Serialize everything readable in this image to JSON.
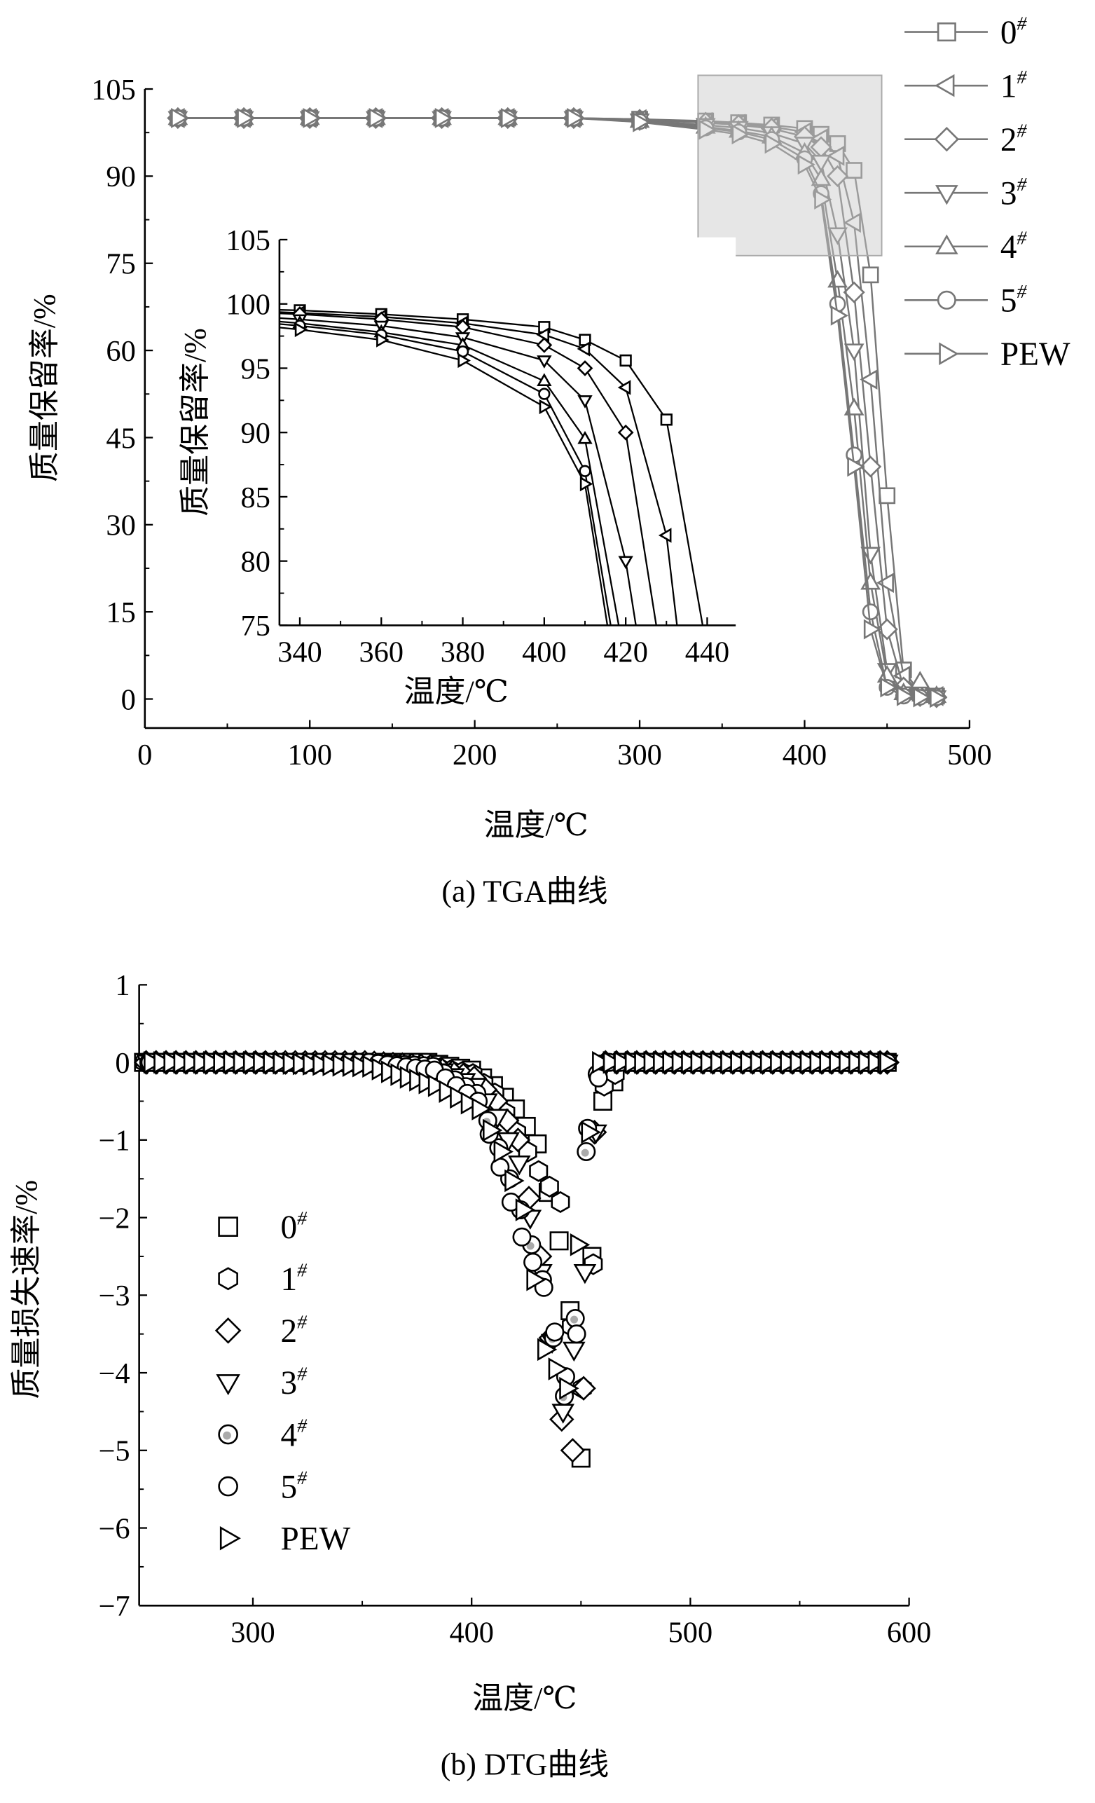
{
  "chart_data": [
    {
      "id": "tga",
      "type": "line",
      "caption": "(a) TGA曲线",
      "xlabel": "温度/℃",
      "ylabel": "质量保留率/%",
      "xlim": [
        0,
        500
      ],
      "ylim": [
        -5,
        105
      ],
      "xticks": [
        0,
        100,
        200,
        300,
        400,
        500
      ],
      "yticks": [
        0,
        15,
        30,
        45,
        60,
        75,
        90,
        105
      ],
      "grid": false,
      "legend_position": "top-right, outside",
      "x": [
        20,
        60,
        100,
        140,
        180,
        220,
        260,
        300,
        340,
        360,
        380,
        400,
        410,
        420,
        430,
        440,
        450,
        460,
        470,
        480
      ],
      "series": [
        {
          "name": "0#",
          "label_base": "0",
          "label_sup": "#",
          "marker": "square",
          "values": [
            100,
            100,
            100,
            100,
            100,
            100,
            100,
            99.8,
            99.5,
            99.2,
            98.8,
            98.2,
            97.2,
            95.6,
            91,
            73,
            35,
            5,
            1,
            0.5
          ]
        },
        {
          "name": "1#",
          "label_base": "1",
          "label_sup": "#",
          "marker": "triangle-left",
          "values": [
            100,
            100,
            100,
            100,
            100,
            100,
            100,
            99.8,
            99.3,
            99,
            98.5,
            97.6,
            96.5,
            93.5,
            82,
            55,
            20,
            4,
            1,
            0.5
          ]
        },
        {
          "name": "2#",
          "label_base": "2",
          "label_sup": "#",
          "marker": "diamond",
          "values": [
            100,
            100,
            100,
            100,
            100,
            100,
            100,
            99.7,
            99.2,
            98.8,
            98.2,
            96.8,
            95,
            90,
            70,
            40,
            12,
            2,
            0.5,
            0.3
          ]
        },
        {
          "name": "3#",
          "label_base": "3",
          "label_sup": "#",
          "marker": "triangle-down",
          "values": [
            100,
            100,
            100,
            100,
            100,
            100,
            100,
            99.6,
            98.8,
            98.3,
            97.4,
            95.6,
            92.5,
            80,
            60,
            25,
            5,
            1,
            0.5,
            0.3
          ]
        },
        {
          "name": "4#",
          "label_base": "4",
          "label_sup": "#",
          "marker": "triangle-up",
          "values": [
            100,
            100,
            100,
            100,
            100,
            100,
            100,
            99.5,
            98.5,
            97.8,
            96.8,
            94,
            89.5,
            72,
            50,
            20,
            4,
            1,
            3,
            0.5
          ]
        },
        {
          "name": "5#",
          "label_base": "5",
          "label_sup": "#",
          "marker": "circle",
          "values": [
            100,
            100,
            100,
            100,
            100,
            100,
            100,
            99.4,
            98.3,
            97.6,
            96.3,
            93,
            87,
            68,
            42,
            15,
            2,
            0.5,
            0.3,
            0.2
          ]
        },
        {
          "name": "PEW",
          "label_base": "PEW",
          "label_sup": "",
          "marker": "triangle-right",
          "values": [
            100,
            100,
            100,
            100,
            100,
            100,
            100,
            99.3,
            98,
            97.2,
            95.6,
            92,
            86,
            66,
            40,
            12,
            2,
            0.5,
            0.3,
            0.2
          ]
        }
      ],
      "inset": {
        "xlabel": "温度/℃",
        "ylabel": "质量保留率/%",
        "xlim": [
          335,
          447
        ],
        "ylim": [
          75,
          105
        ],
        "xticks": [
          340,
          360,
          380,
          400,
          420,
          440
        ],
        "yticks": [
          75,
          80,
          85,
          90,
          95,
          100,
          105
        ]
      }
    },
    {
      "id": "dtg",
      "type": "scatter",
      "caption": "(b) DTG曲线",
      "xlabel": "温度/℃",
      "ylabel": "质量损失速率/%",
      "xlim": [
        248,
        600
      ],
      "ylim": [
        -7,
        1
      ],
      "xticks": [
        300,
        400,
        500,
        600
      ],
      "yticks": [
        1,
        0,
        -1,
        -2,
        -3,
        -4,
        -5,
        -6,
        -7
      ],
      "yticklabels": [
        "1",
        "0",
        "−1",
        "−2",
        "−3",
        "−4",
        "−5",
        "−6",
        "−7"
      ],
      "grid": false,
      "legend_position": "center-left",
      "x": [
        250,
        300,
        350,
        380,
        400,
        410,
        420,
        430,
        440,
        445,
        450,
        455,
        460,
        470,
        500,
        550,
        590
      ],
      "series": [
        {
          "name": "0#",
          "label_base": "0",
          "label_sup": "#",
          "marker": "square",
          "values": [
            0,
            0,
            0,
            0,
            -0.1,
            -0.3,
            -0.6,
            -1.05,
            -2.3,
            -3.2,
            -5.1,
            -2.5,
            -0.5,
            0,
            0,
            0,
            0
          ]
        },
        {
          "name": "1#",
          "label_base": "1",
          "label_sup": "#",
          "marker": "hexagon",
          "values": [
            0,
            0,
            0,
            -0.05,
            -0.15,
            -0.4,
            -0.9,
            -1.4,
            -1.8,
            -3.4,
            -4.2,
            -2.6,
            -0.3,
            0,
            0,
            0,
            0
          ]
        },
        {
          "name": "2#",
          "label_base": "2",
          "label_sup": "#",
          "marker": "diamond",
          "values": [
            0,
            0,
            0,
            -0.05,
            -0.2,
            -0.5,
            -1.0,
            -2.5,
            -4.6,
            -5.0,
            -4.2,
            -0.9,
            0,
            0,
            0,
            0,
            0
          ]
        },
        {
          "name": "3#",
          "label_base": "3",
          "label_sup": "#",
          "marker": "triangle-down",
          "values": [
            0,
            0,
            0,
            -0.05,
            -0.3,
            -0.7,
            -1.3,
            -2.7,
            -4.5,
            -3.7,
            -2.7,
            -0.9,
            0,
            0,
            0,
            0,
            0
          ]
        },
        {
          "name": "4#",
          "label_base": "4",
          "label_sup": "#",
          "marker": "circle-dot",
          "values": [
            0,
            0,
            0,
            -0.05,
            -0.4,
            -1.1,
            -1.9,
            -2.8,
            -4.3,
            -3.3,
            -1.15,
            -0.15,
            0,
            0,
            0,
            0,
            0
          ]
        },
        {
          "name": "5#",
          "label_base": "5",
          "label_sup": "#",
          "marker": "circle",
          "values": [
            0,
            0,
            0,
            -0.1,
            -0.5,
            -1.35,
            -2.25,
            -2.9,
            -4.05,
            -3.5,
            -0.85,
            -0.2,
            0,
            0,
            0,
            0,
            0
          ]
        },
        {
          "name": "PEW",
          "label_base": "PEW",
          "label_sup": "",
          "marker": "triangle-right",
          "values": [
            0,
            0,
            -0.05,
            -0.3,
            -0.6,
            -1.15,
            -1.9,
            -3.7,
            -4.2,
            -2.35,
            -0.9,
            0,
            0,
            0,
            0,
            0,
            0
          ]
        }
      ]
    }
  ]
}
